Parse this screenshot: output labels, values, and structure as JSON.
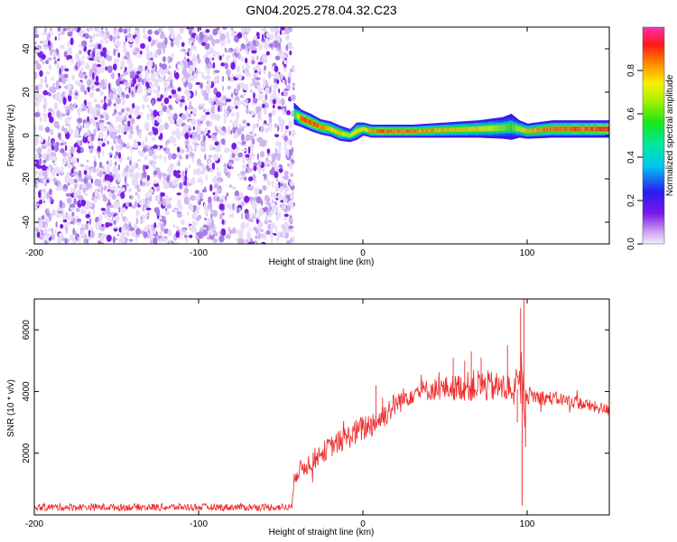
{
  "chart_data": [
    {
      "type": "heatmap",
      "title": "GN04.2025.278.04.32.C23",
      "xlabel": "Height of straight line (km)",
      "ylabel": "Frequency (Hz)",
      "xlim": [
        -200,
        150
      ],
      "ylim": [
        -50,
        50
      ],
      "xticks": [
        -200,
        -100,
        0,
        100
      ],
      "xtick_labels": [
        "-200",
        "-100",
        "0",
        "100"
      ],
      "yticks": [
        -40,
        -20,
        0,
        20,
        40
      ],
      "ytick_labels": [
        "-40",
        "-20",
        "0",
        "20",
        "40"
      ],
      "colorbar": {
        "label": "Normalized spectral amplitude",
        "range": [
          0,
          1
        ],
        "ticks": [
          0,
          0.2,
          0.4,
          0.6,
          0.8
        ],
        "tick_labels": [
          "0.0",
          "0.2",
          "0.4",
          "0.6",
          "0.8"
        ]
      },
      "noise_region": {
        "x_from": -200,
        "x_to": -42,
        "level": 0.15
      },
      "signal_track": {
        "x": [
          -42,
          -38,
          -32,
          -26,
          -20,
          -14,
          -8,
          -4,
          0,
          5,
          15,
          30,
          50,
          70,
          85,
          90,
          95,
          100,
          115,
          150
        ],
        "freq": [
          10,
          8,
          6,
          4,
          3,
          1,
          0,
          2,
          3,
          2,
          2,
          2,
          2.5,
          3,
          3.5,
          4,
          3,
          2,
          3,
          3
        ],
        "amplitude": [
          0.55,
          0.9,
          0.95,
          0.9,
          0.85,
          0.8,
          0.7,
          0.8,
          0.75,
          0.9,
          0.92,
          0.9,
          0.85,
          0.8,
          0.7,
          0.6,
          0.8,
          0.85,
          0.9,
          0.95
        ],
        "halfwidth": [
          5,
          4,
          4,
          3.5,
          3.5,
          3.5,
          3,
          4,
          3,
          3,
          3,
          3,
          3.5,
          4,
          5,
          6,
          4,
          3.5,
          4,
          4
        ]
      }
    },
    {
      "type": "line",
      "xlabel": "Height of straight line (km)",
      "ylabel": "SNR (10 * v/v)",
      "xlim": [
        -200,
        150
      ],
      "ylim": [
        0,
        7000
      ],
      "xticks": [
        -200,
        -100,
        0,
        100
      ],
      "xtick_labels": [
        "-200",
        "-100",
        "0",
        "100"
      ],
      "yticks": [
        2000,
        4000,
        6000
      ],
      "ytick_labels": [
        "2000",
        "4000",
        "6000"
      ],
      "color": "#ee2a2a",
      "series": [
        {
          "name": "SNR",
          "x": [
            -200,
            -100,
            -43,
            -42,
            -30,
            -20,
            -10,
            0,
            10,
            20,
            30,
            40,
            50,
            60,
            70,
            80,
            90,
            96,
            98,
            100,
            110,
            120,
            130,
            140,
            150
          ],
          "y": [
            250,
            250,
            250,
            1300,
            1800,
            2200,
            2500,
            2800,
            3100,
            3600,
            3950,
            4050,
            4100,
            4150,
            4200,
            4150,
            4100,
            4050,
            4000,
            3900,
            3800,
            3750,
            3650,
            3500,
            3400
          ],
          "noise": [
            120,
            120,
            120,
            300,
            350,
            350,
            400,
            450,
            450,
            400,
            350,
            350,
            400,
            450,
            550,
            500,
            500,
            800,
            800,
            300,
            250,
            220,
            220,
            200,
            200
          ]
        }
      ],
      "spikes": [
        {
          "x": 55,
          "y": 5100
        },
        {
          "x": 62,
          "y": 5000
        },
        {
          "x": 66,
          "y": 5300
        },
        {
          "x": 72,
          "y": 5100
        },
        {
          "x": 88,
          "y": 5500
        },
        {
          "x": 96,
          "y": 6700
        },
        {
          "x": 98,
          "y": 7000
        },
        {
          "x": 97,
          "y": 300
        },
        {
          "x": 99,
          "y": 2200
        },
        {
          "x": 94,
          "y": 3000
        },
        {
          "x": 8,
          "y": 4200
        },
        {
          "x": 12,
          "y": 3800
        }
      ]
    }
  ]
}
